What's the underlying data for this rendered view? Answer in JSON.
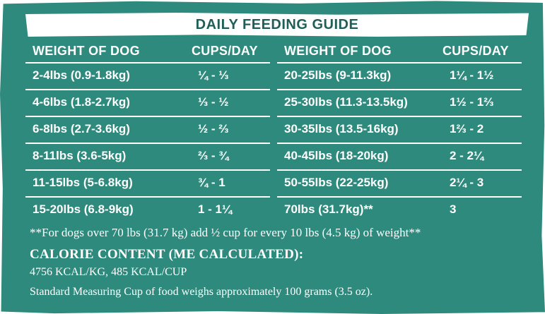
{
  "title": "DAILY FEEDING GUIDE",
  "headers": {
    "weight": "WEIGHT OF DOG",
    "cups": "CUPS/DAY"
  },
  "left_rows": [
    {
      "weight": "2-4lbs (0.9-1.8kg)",
      "cups": "¼ - ⅓"
    },
    {
      "weight": "4-6lbs (1.8-2.7kg)",
      "cups": "⅓ - ½"
    },
    {
      "weight": "6-8lbs (2.7-3.6kg)",
      "cups": "½ - ⅔"
    },
    {
      "weight": "8-11lbs (3.6-5kg)",
      "cups": "⅔ - ¾"
    },
    {
      "weight": "11-15lbs (5-6.8kg)",
      "cups": "¾ - 1"
    },
    {
      "weight": "15-20lbs (6.8-9kg)",
      "cups": "1 - 1¼"
    }
  ],
  "right_rows": [
    {
      "weight": "20-25lbs (9-11.3kg)",
      "cups": "1¼ - 1½"
    },
    {
      "weight": "25-30lbs (11.3-13.5kg)",
      "cups": "1½ - 1⅔"
    },
    {
      "weight": "30-35lbs (13.5-16kg)",
      "cups": "1⅔ - 2"
    },
    {
      "weight": "40-45lbs (18-20kg)",
      "cups": "2 - 2¼"
    },
    {
      "weight": "50-55lbs (22-25kg)",
      "cups": "2¼ - 3"
    },
    {
      "weight": "70lbs (31.7kg)**",
      "cups": "3"
    }
  ],
  "footnote": "**For dogs over 70 lbs (31.7 kg) add ½ cup for every 10 lbs (4.5 kg) of weight**",
  "calorie": {
    "heading": "CALORIE CONTENT (ME CALCULATED):",
    "line1": "4756 KCAL/KG, 485 KCAL/CUP",
    "line2": "Standard Measuring Cup of food weighs approximately 100 grams (3.5 oz)."
  },
  "colors": {
    "panel": "#2e8a7d",
    "title_text": "#1f5f57",
    "text": "#ffffff"
  }
}
